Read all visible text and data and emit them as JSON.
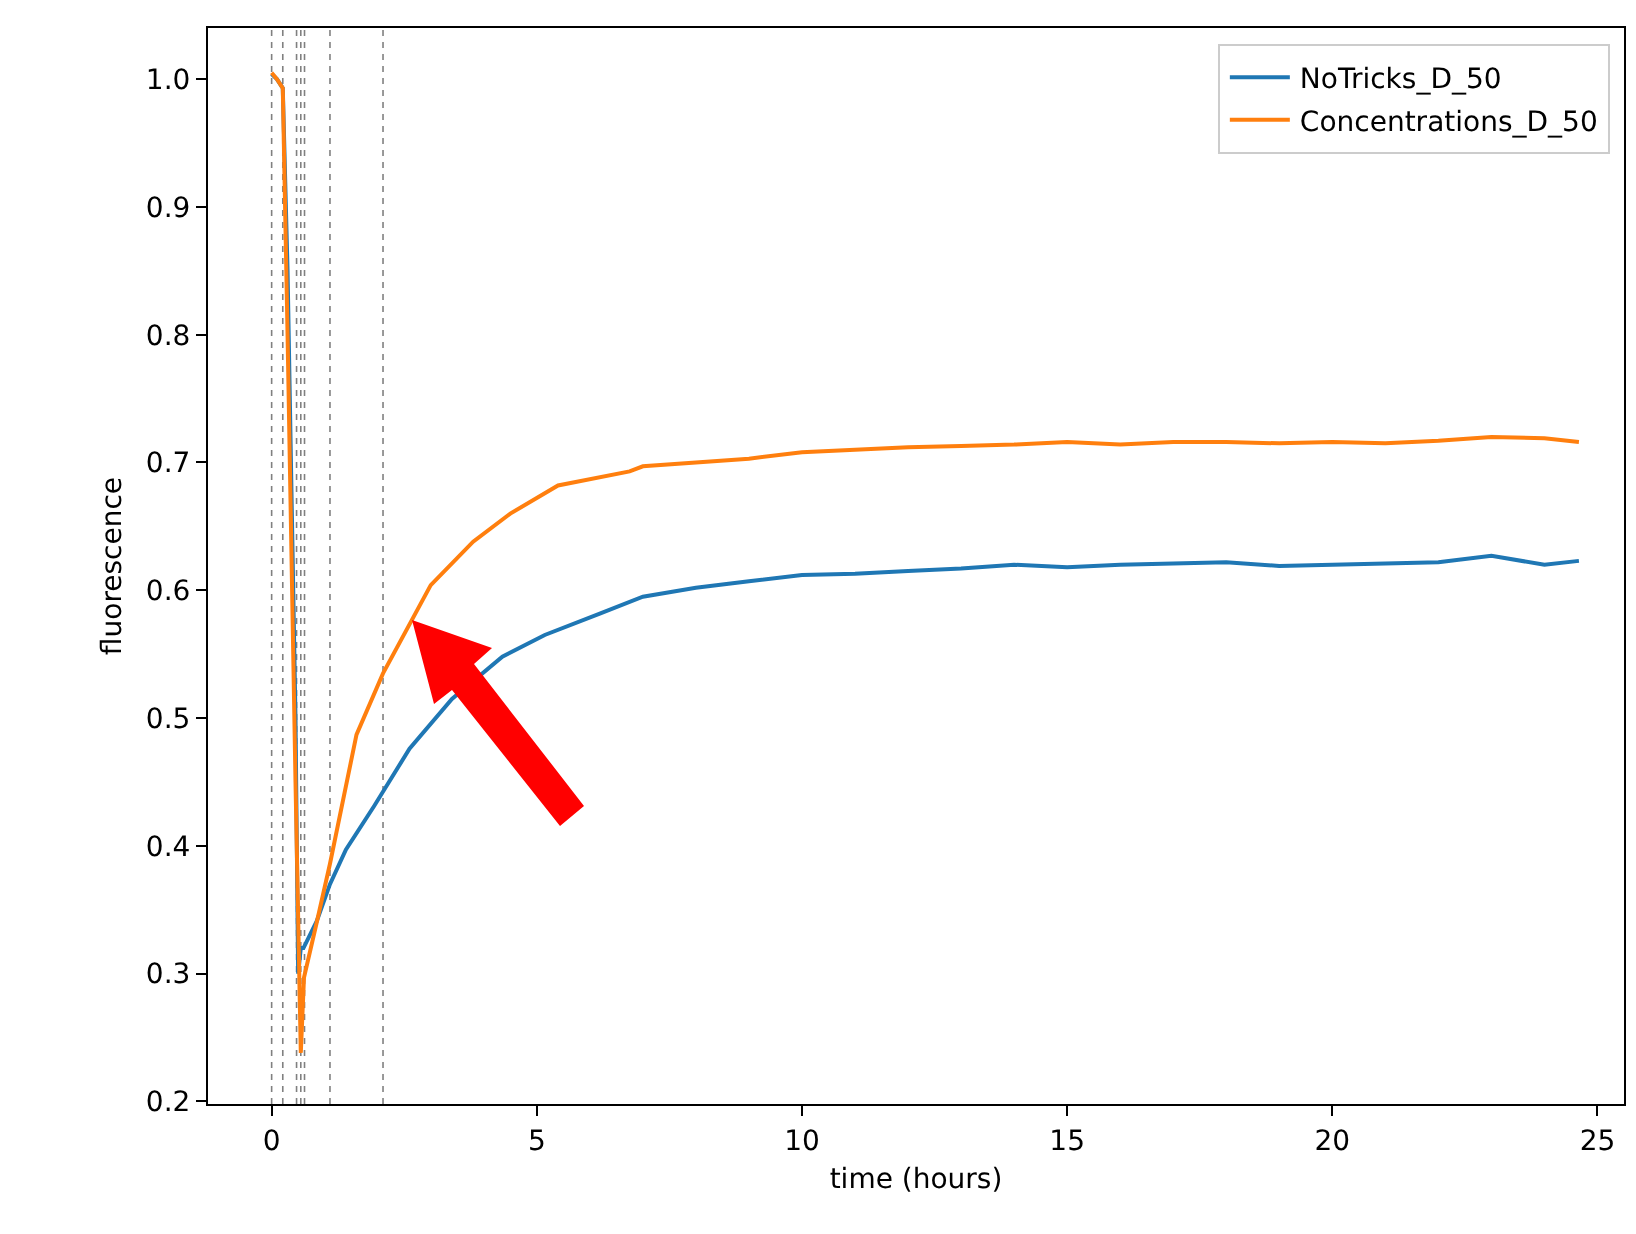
{
  "chart_data": {
    "type": "line",
    "xlabel": "time (hours)",
    "ylabel": "fluorescence",
    "xlim": [
      -1.2,
      25.5
    ],
    "xticks": [
      0,
      5,
      10,
      15,
      20,
      25
    ],
    "ylim": [
      0.198,
      1.04
    ],
    "yticks": [
      {
        "value": 0.2,
        "label": "0.2"
      },
      {
        "value": 0.3,
        "label": "0.3"
      },
      {
        "value": 0.4,
        "label": "0.4"
      },
      {
        "value": 0.5,
        "label": "0.5"
      },
      {
        "value": 0.6,
        "label": "0.6"
      },
      {
        "value": 0.7,
        "label": "0.7"
      },
      {
        "value": 0.8,
        "label": "0.8"
      },
      {
        "value": 0.9,
        "label": "0.9"
      },
      {
        "value": 1.0,
        "label": "1.0"
      }
    ],
    "grid": false,
    "legend": "top right",
    "marker": "none",
    "line_style": "solid",
    "series": [
      {
        "name": "NoTricks_D_50",
        "color": "#1f77b4",
        "x": [
          0,
          0.1,
          0.21,
          0.3,
          0.45,
          0.5,
          0.55,
          0.6,
          0.85,
          1.1,
          1.4,
          1.93,
          2.6,
          3.4,
          4.35,
          5.15,
          6.2,
          7,
          8,
          9,
          10,
          11,
          12,
          13,
          14,
          15,
          16,
          17,
          18,
          19,
          20,
          21,
          22,
          23,
          24,
          24.65
        ],
        "values": [
          1.004,
          1.0,
          0.993,
          0.85,
          0.5,
          0.3,
          0.32,
          0.32,
          0.341,
          0.37,
          0.397,
          0.431,
          0.476,
          0.515,
          0.548,
          0.565,
          0.582,
          0.595,
          0.602,
          0.607,
          0.612,
          0.613,
          0.615,
          0.617,
          0.62,
          0.618,
          0.62,
          0.621,
          0.622,
          0.619,
          0.62,
          0.621,
          0.622,
          0.627,
          0.62,
          0.623
        ]
      },
      {
        "name": "Concentrations_D_50",
        "color": "#ff7f0e",
        "x": [
          0,
          0.1,
          0.21,
          0.3,
          0.45,
          0.55,
          0.61,
          0.85,
          1.1,
          1.6,
          2.1,
          3.0,
          3.8,
          4.5,
          5.4,
          6.75,
          7,
          8,
          9,
          10,
          11,
          12,
          13,
          14,
          15,
          16,
          17,
          18,
          19,
          20,
          21,
          22,
          23,
          24,
          24.65
        ],
        "values": [
          1.005,
          1.0,
          0.993,
          0.8,
          0.45,
          0.238,
          0.297,
          0.34,
          0.386,
          0.487,
          0.535,
          0.604,
          0.638,
          0.66,
          0.682,
          0.693,
          0.697,
          0.7,
          0.703,
          0.708,
          0.71,
          0.712,
          0.713,
          0.714,
          0.716,
          0.714,
          0.716,
          0.716,
          0.715,
          0.716,
          0.715,
          0.717,
          0.72,
          0.719,
          0.716
        ]
      }
    ],
    "ref_lines": [
      {
        "axis": "x",
        "value": 0,
        "color": "#808080",
        "line_style": "dotted"
      },
      {
        "axis": "x",
        "value": 0.21,
        "color": "#808080",
        "line_style": "dotted"
      },
      {
        "axis": "x",
        "value": 0.47,
        "color": "#808080",
        "line_style": "dotted"
      },
      {
        "axis": "x",
        "value": 0.55,
        "color": "#808080",
        "line_style": "dotted"
      },
      {
        "axis": "x",
        "value": 0.62,
        "color": "#808080",
        "line_style": "dotted"
      },
      {
        "axis": "x",
        "value": 1.1,
        "color": "#808080",
        "line_style": "dotted"
      },
      {
        "axis": "x",
        "value": 2.1,
        "color": "#808080",
        "line_style": "dotted"
      }
    ]
  }
}
